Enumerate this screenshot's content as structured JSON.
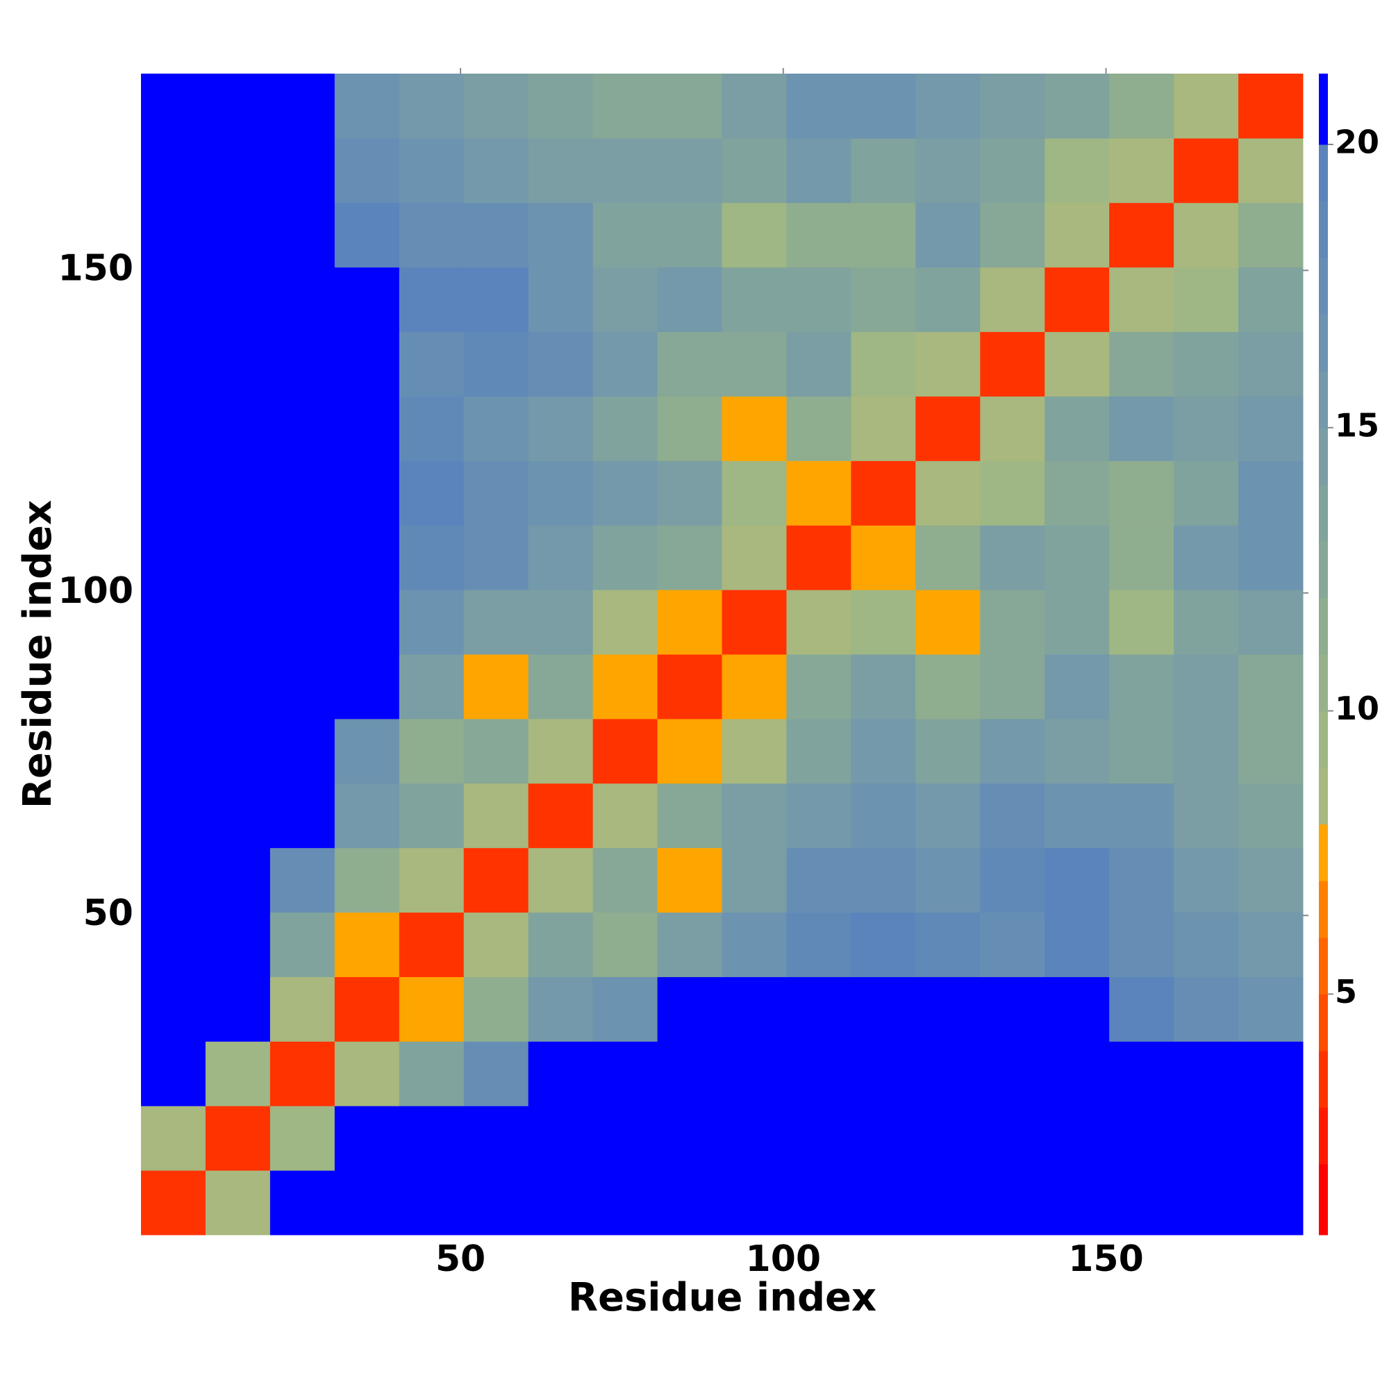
{
  "chart_data": {
    "type": "heatmap",
    "xlabel": "Residue index",
    "ylabel": "Residue index",
    "x_bins": [
      0.5,
      10.5,
      20.5,
      30.5,
      40.5,
      50.5,
      60.5,
      70.5,
      80.5,
      90.5,
      100.5,
      110.5,
      120.5,
      130.5,
      140.5,
      150.5,
      160.5,
      170.5,
      180.5
    ],
    "y_bins": [
      0.5,
      10.5,
      20.5,
      30.5,
      40.5,
      50.5,
      60.5,
      70.5,
      80.5,
      90.5,
      100.5,
      110.5,
      120.5,
      130.5,
      140.5,
      150.5,
      160.5,
      170.5,
      180.5
    ],
    "xlim": [
      0.5,
      180.5
    ],
    "ylim": [
      0.5,
      180.5
    ],
    "xticks": [
      50,
      100,
      150
    ],
    "yticks": [
      50,
      100,
      150
    ],
    "clim": [
      0.75,
      21.25
    ],
    "cticks": [
      5,
      10,
      15,
      20
    ],
    "color_levels": [
      {
        "from": 0.75,
        "to": 2,
        "color": "#ff0000"
      },
      {
        "from": 2,
        "to": 3,
        "color": "#ff1a00"
      },
      {
        "from": 3,
        "to": 4,
        "color": "#ff3300"
      },
      {
        "from": 4,
        "to": 5,
        "color": "#ff4d00"
      },
      {
        "from": 5,
        "to": 6,
        "color": "#ff6600"
      },
      {
        "from": 6,
        "to": 7,
        "color": "#ff8000"
      },
      {
        "from": 7,
        "to": 8,
        "color": "#ffa500"
      },
      {
        "from": 8,
        "to": 9,
        "color": "#a8b87e"
      },
      {
        "from": 9,
        "to": 10,
        "color": "#9fb784"
      },
      {
        "from": 10,
        "to": 11,
        "color": "#97b28a"
      },
      {
        "from": 11,
        "to": 12,
        "color": "#8fad8f"
      },
      {
        "from": 12,
        "to": 13,
        "color": "#87a896"
      },
      {
        "from": 13,
        "to": 14,
        "color": "#80a39d"
      },
      {
        "from": 14,
        "to": 15,
        "color": "#7a9ea4"
      },
      {
        "from": 15,
        "to": 16,
        "color": "#7399aa"
      },
      {
        "from": 16,
        "to": 17,
        "color": "#6c93b0"
      },
      {
        "from": 17,
        "to": 18,
        "color": "#668eb5"
      },
      {
        "from": 18,
        "to": 19,
        "color": "#6089b8"
      },
      {
        "from": 19,
        "to": 20,
        "color": "#5a84bb"
      },
      {
        "from": 20,
        "to": 21.25,
        "color": "#0000ff"
      }
    ],
    "z": [
      [
        4,
        9,
        22,
        22,
        22,
        22,
        22,
        22,
        22,
        22,
        22,
        22,
        22,
        22,
        22,
        22,
        22,
        22
      ],
      [
        9,
        4,
        10,
        22,
        22,
        22,
        22,
        22,
        22,
        22,
        22,
        22,
        22,
        22,
        22,
        22,
        22,
        22
      ],
      [
        22,
        10,
        4,
        9,
        14,
        18,
        22,
        22,
        22,
        22,
        22,
        22,
        22,
        22,
        22,
        22,
        22,
        22
      ],
      [
        22,
        22,
        9,
        4,
        8,
        12,
        16,
        17,
        22,
        22,
        22,
        22,
        22,
        22,
        22,
        20,
        18,
        17
      ],
      [
        22,
        22,
        14,
        8,
        4,
        9,
        14,
        12,
        15,
        17,
        19,
        20,
        19,
        18,
        20,
        18,
        17,
        16
      ],
      [
        22,
        22,
        18,
        12,
        9,
        4,
        9,
        13,
        8,
        15,
        18,
        18,
        17,
        19,
        20,
        18,
        16,
        15
      ],
      [
        22,
        22,
        22,
        16,
        14,
        9,
        4,
        9,
        13,
        15,
        16,
        17,
        16,
        18,
        17,
        17,
        15,
        14
      ],
      [
        22,
        22,
        22,
        17,
        12,
        13,
        9,
        4,
        8,
        9,
        14,
        16,
        14,
        16,
        15,
        14,
        15,
        13
      ],
      [
        22,
        22,
        22,
        22,
        15,
        8,
        13,
        8,
        4,
        8,
        13,
        15,
        12,
        13,
        16,
        14,
        15,
        13
      ],
      [
        22,
        22,
        22,
        22,
        17,
        15,
        15,
        9,
        8,
        4,
        9,
        10,
        8,
        13,
        14,
        10,
        14,
        15
      ],
      [
        22,
        22,
        22,
        22,
        19,
        18,
        16,
        14,
        13,
        9,
        4,
        8,
        12,
        15,
        14,
        12,
        16,
        17
      ],
      [
        22,
        22,
        22,
        22,
        20,
        18,
        17,
        16,
        15,
        10,
        8,
        4,
        9,
        10,
        13,
        12,
        14,
        17
      ],
      [
        22,
        22,
        22,
        22,
        19,
        17,
        16,
        14,
        12,
        8,
        12,
        9,
        4,
        9,
        14,
        16,
        15,
        16
      ],
      [
        22,
        22,
        22,
        22,
        18,
        19,
        18,
        16,
        13,
        13,
        15,
        10,
        9,
        4,
        9,
        13,
        14,
        15
      ],
      [
        22,
        22,
        22,
        22,
        20,
        20,
        17,
        15,
        16,
        14,
        14,
        13,
        14,
        9,
        4,
        9,
        10,
        14
      ],
      [
        22,
        22,
        22,
        20,
        18,
        18,
        17,
        14,
        14,
        10,
        12,
        12,
        16,
        13,
        9,
        4,
        9,
        12
      ],
      [
        22,
        22,
        22,
        18,
        17,
        16,
        15,
        15,
        15,
        14,
        16,
        14,
        15,
        14,
        10,
        9,
        4,
        9
      ],
      [
        22,
        22,
        22,
        17,
        16,
        15,
        14,
        13,
        13,
        15,
        17,
        17,
        16,
        15,
        14,
        12,
        9,
        4
      ]
    ]
  }
}
